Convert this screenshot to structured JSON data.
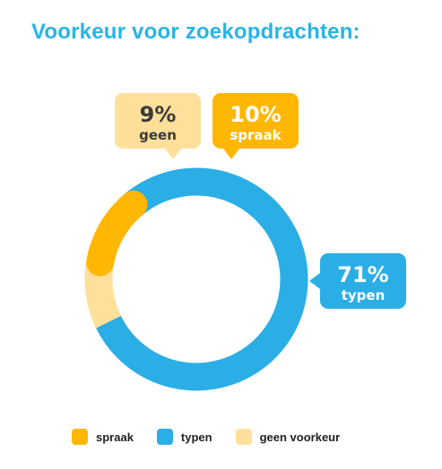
{
  "title": "Voorkeur voor zoekopdrachten:",
  "colors": {
    "title": "#27B4E9",
    "spraak": "#FFB703",
    "typen": "#2BAEE6",
    "geen": "#FFE09A",
    "text_dark": "#3A3A3A",
    "text_white": "#FFFFFF"
  },
  "callouts": {
    "geen": {
      "pct": "9%",
      "label": "geen"
    },
    "spraak": {
      "pct": "10%",
      "label": "spraak"
    },
    "typen": {
      "pct": "71%",
      "label": "typen"
    }
  },
  "legend": [
    {
      "key": "spraak",
      "label": "spraak"
    },
    {
      "key": "typen",
      "label": "typen"
    },
    {
      "key": "geen",
      "label": "geen voorkeur"
    }
  ],
  "chart_data": {
    "type": "pie",
    "title": "Voorkeur voor zoekopdrachten:",
    "categories": [
      "spraak",
      "typen",
      "geen voorkeur"
    ],
    "values": [
      10,
      71,
      9
    ],
    "legend": "bottom"
  }
}
